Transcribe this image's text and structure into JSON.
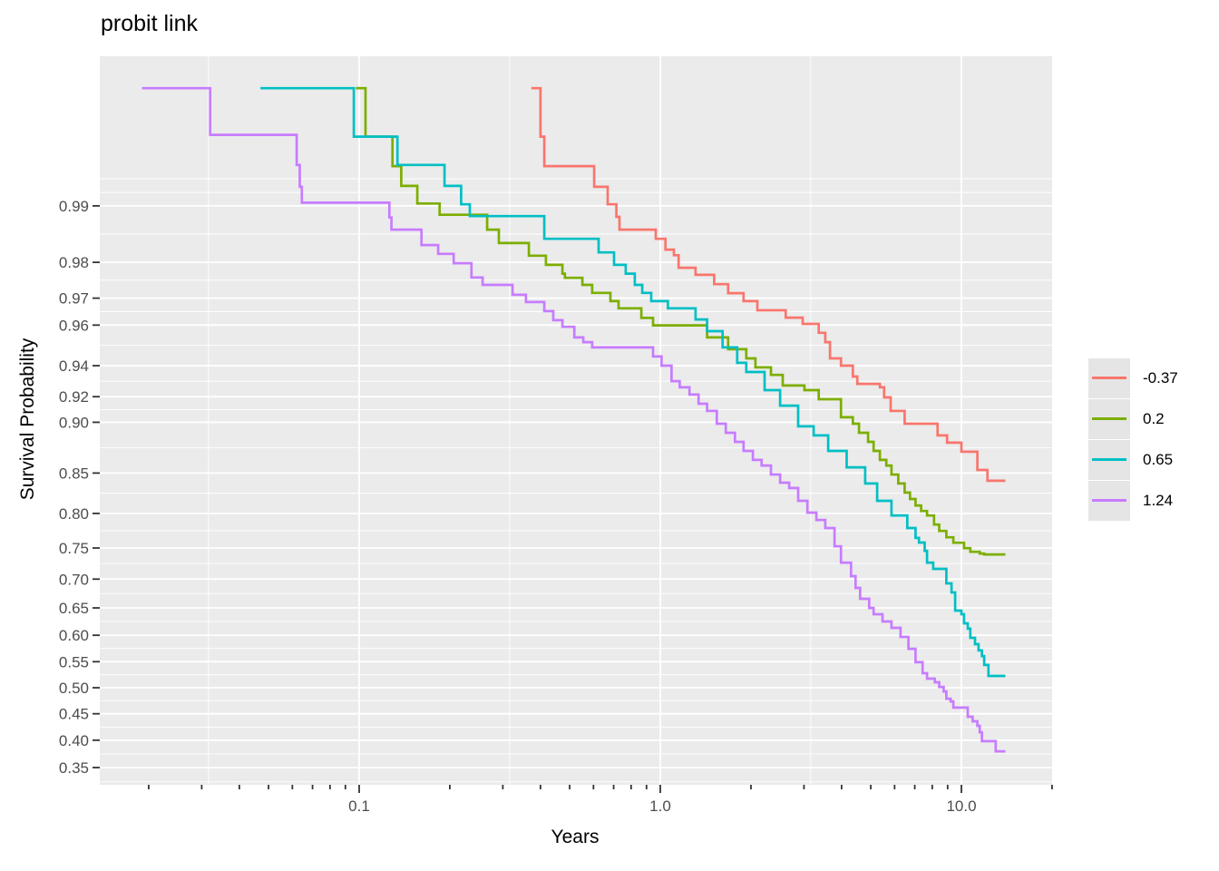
{
  "title": "probit link",
  "chart_data": {
    "type": "line",
    "subtype": "step-survival",
    "title": "probit link",
    "xlabel": "Years",
    "ylabel": "Survival Probability",
    "x_scale": "log10",
    "y_scale": "probit",
    "x_range": [
      0.0138,
      20.0
    ],
    "y_range": [
      0.32,
      0.9988
    ],
    "grid": "on",
    "legend_position": "right",
    "panel_background": "#EBEBEB",
    "gridline_color": "#FFFFFF",
    "tick_color": "#333333",
    "tick_label_color": "#4D4D4D",
    "x_ticks": [
      {
        "value": 0.1,
        "label": "0.1"
      },
      {
        "value": 1.0,
        "label": "1.0"
      },
      {
        "value": 10.0,
        "label": "10.0"
      }
    ],
    "x_minor_ticks": [
      0.02,
      0.03,
      0.04,
      0.05,
      0.06,
      0.07,
      0.08,
      0.09,
      0.2,
      0.3,
      0.4,
      0.5,
      0.6,
      0.7,
      0.8,
      0.9,
      2,
      3,
      4,
      5,
      6,
      7,
      8,
      9,
      20
    ],
    "x_minor_gridlines": [
      0.0316,
      0.316,
      3.16
    ],
    "y_ticks": [
      {
        "value": 0.99,
        "label": "0.99"
      },
      {
        "value": 0.98,
        "label": "0.98"
      },
      {
        "value": 0.97,
        "label": "0.97"
      },
      {
        "value": 0.96,
        "label": "0.96"
      },
      {
        "value": 0.94,
        "label": "0.94"
      },
      {
        "value": 0.92,
        "label": "0.92"
      },
      {
        "value": 0.9,
        "label": "0.90"
      },
      {
        "value": 0.85,
        "label": "0.85"
      },
      {
        "value": 0.8,
        "label": "0.80"
      },
      {
        "value": 0.75,
        "label": "0.75"
      },
      {
        "value": 0.7,
        "label": "0.70"
      },
      {
        "value": 0.65,
        "label": "0.65"
      },
      {
        "value": 0.6,
        "label": "0.60"
      },
      {
        "value": 0.55,
        "label": "0.55"
      },
      {
        "value": 0.5,
        "label": "0.50"
      },
      {
        "value": 0.45,
        "label": "0.45"
      },
      {
        "value": 0.4,
        "label": "0.40"
      },
      {
        "value": 0.35,
        "label": "0.35"
      }
    ],
    "y_minor_gridlines": [
      0.993,
      0.9916,
      0.98574,
      0.97543,
      0.96528,
      0.95086,
      0.93055,
      0.91036,
      0.87678,
      0.82614,
      0.77582,
      0.72564,
      0.67527,
      0.62528,
      0.57535,
      0.52504,
      0.47496,
      0.42465,
      0.37472,
      0.3249
    ],
    "series": [
      {
        "name": "-0.37",
        "color": "#F8766D",
        "points": [
          [
            0.373,
            0.9981
          ],
          [
            0.4,
            0.9961
          ],
          [
            0.412,
            0.9941
          ],
          [
            0.603,
            0.9922
          ],
          [
            0.669,
            0.9902
          ],
          [
            0.715,
            0.9885
          ],
          [
            0.732,
            0.9865
          ],
          [
            0.966,
            0.9849
          ],
          [
            1.04,
            0.9828
          ],
          [
            1.11,
            0.9816
          ],
          [
            1.15,
            0.9787
          ],
          [
            1.31,
            0.9769
          ],
          [
            1.51,
            0.9743
          ],
          [
            1.68,
            0.9716
          ],
          [
            1.89,
            0.969
          ],
          [
            2.1,
            0.9658
          ],
          [
            2.61,
            0.963
          ],
          [
            2.97,
            0.9605
          ],
          [
            3.36,
            0.9567
          ],
          [
            3.53,
            0.9524
          ],
          [
            3.66,
            0.9441
          ],
          [
            3.98,
            0.94
          ],
          [
            4.36,
            0.9335
          ],
          [
            4.51,
            0.9288
          ],
          [
            5.36,
            0.9265
          ],
          [
            5.54,
            0.9195
          ],
          [
            5.82,
            0.9093
          ],
          [
            6.48,
            0.8988
          ],
          [
            8.33,
            0.8884
          ],
          [
            8.96,
            0.8816
          ],
          [
            10.0,
            0.8727
          ],
          [
            11.3,
            0.8534
          ],
          [
            12.2,
            0.8411
          ],
          [
            14.0,
            0.8411
          ]
        ]
      },
      {
        "name": "0.2",
        "color": "#7CAE00",
        "points": [
          [
            0.0975,
            0.9981
          ],
          [
            0.105,
            0.9961
          ],
          [
            0.129,
            0.9941
          ],
          [
            0.138,
            0.9923
          ],
          [
            0.156,
            0.9903
          ],
          [
            0.185,
            0.9888
          ],
          [
            0.266,
            0.9865
          ],
          [
            0.291,
            0.9841
          ],
          [
            0.366,
            0.9815
          ],
          [
            0.417,
            0.9794
          ],
          [
            0.473,
            0.9772
          ],
          [
            0.482,
            0.9761
          ],
          [
            0.551,
            0.9741
          ],
          [
            0.594,
            0.9717
          ],
          [
            0.683,
            0.969
          ],
          [
            0.727,
            0.9665
          ],
          [
            0.865,
            0.9629
          ],
          [
            0.946,
            0.9599
          ],
          [
            1.43,
            0.9546
          ],
          [
            1.68,
            0.9489
          ],
          [
            1.93,
            0.9441
          ],
          [
            2.07,
            0.939
          ],
          [
            2.33,
            0.9345
          ],
          [
            2.55,
            0.9277
          ],
          [
            3.01,
            0.9246
          ],
          [
            3.36,
            0.9182
          ],
          [
            3.98,
            0.9042
          ],
          [
            4.36,
            0.8988
          ],
          [
            4.57,
            0.8908
          ],
          [
            4.9,
            0.8824
          ],
          [
            5.11,
            0.8735
          ],
          [
            5.36,
            0.8643
          ],
          [
            5.63,
            0.8583
          ],
          [
            5.86,
            0.8483
          ],
          [
            6.17,
            0.8379
          ],
          [
            6.48,
            0.827
          ],
          [
            6.75,
            0.8189
          ],
          [
            7.04,
            0.8106
          ],
          [
            7.35,
            0.8033
          ],
          [
            7.69,
            0.7971
          ],
          [
            8.11,
            0.7845
          ],
          [
            8.44,
            0.7754
          ],
          [
            8.91,
            0.7661
          ],
          [
            9.4,
            0.758
          ],
          [
            10.2,
            0.7497
          ],
          [
            10.7,
            0.7442
          ],
          [
            11.5,
            0.7414
          ],
          [
            11.9,
            0.74
          ],
          [
            14.0,
            0.74
          ]
        ]
      },
      {
        "name": "0.65",
        "color": "#00BFC4",
        "points": [
          [
            0.047,
            0.9981
          ],
          [
            0.096,
            0.9961
          ],
          [
            0.134,
            0.9942
          ],
          [
            0.192,
            0.9923
          ],
          [
            0.218,
            0.9902
          ],
          [
            0.233,
            0.9886
          ],
          [
            0.412,
            0.9849
          ],
          [
            0.624,
            0.9822
          ],
          [
            0.702,
            0.9794
          ],
          [
            0.768,
            0.9772
          ],
          [
            0.823,
            0.9741
          ],
          [
            0.871,
            0.9717
          ],
          [
            0.933,
            0.969
          ],
          [
            1.06,
            0.9665
          ],
          [
            1.31,
            0.9623
          ],
          [
            1.43,
            0.9574
          ],
          [
            1.61,
            0.9498
          ],
          [
            1.8,
            0.9416
          ],
          [
            1.93,
            0.9363
          ],
          [
            2.22,
            0.9246
          ],
          [
            2.5,
            0.9134
          ],
          [
            2.87,
            0.8965
          ],
          [
            3.23,
            0.8884
          ],
          [
            3.61,
            0.8735
          ],
          [
            4.16,
            0.8563
          ],
          [
            4.79,
            0.8379
          ],
          [
            5.25,
            0.8165
          ],
          [
            5.86,
            0.7973
          ],
          [
            6.61,
            0.7796
          ],
          [
            7.04,
            0.7652
          ],
          [
            7.23,
            0.7583
          ],
          [
            7.55,
            0.7457
          ],
          [
            7.69,
            0.7271
          ],
          [
            8.06,
            0.717
          ],
          [
            8.91,
            0.6928
          ],
          [
            9.27,
            0.6772
          ],
          [
            9.53,
            0.6451
          ],
          [
            10.0,
            0.6387
          ],
          [
            10.2,
            0.6221
          ],
          [
            10.5,
            0.6122
          ],
          [
            10.7,
            0.5952
          ],
          [
            11.1,
            0.5832
          ],
          [
            11.4,
            0.5714
          ],
          [
            11.7,
            0.5608
          ],
          [
            11.9,
            0.5438
          ],
          [
            12.3,
            0.5227
          ],
          [
            14.0,
            0.5227
          ]
        ]
      },
      {
        "name": "1.24",
        "color": "#C77CFF",
        "points": [
          [
            0.019,
            0.9981
          ],
          [
            0.032,
            0.9962
          ],
          [
            0.062,
            0.9942
          ],
          [
            0.0635,
            0.9922
          ],
          [
            0.0645,
            0.9904
          ],
          [
            0.126,
            0.9884
          ],
          [
            0.128,
            0.9865
          ],
          [
            0.161,
            0.9837
          ],
          [
            0.183,
            0.9819
          ],
          [
            0.206,
            0.9798
          ],
          [
            0.236,
            0.9762
          ],
          [
            0.257,
            0.9741
          ],
          [
            0.323,
            0.9711
          ],
          [
            0.358,
            0.9687
          ],
          [
            0.412,
            0.9655
          ],
          [
            0.441,
            0.962
          ],
          [
            0.473,
            0.9593
          ],
          [
            0.518,
            0.9546
          ],
          [
            0.555,
            0.9524
          ],
          [
            0.594,
            0.9498
          ],
          [
            0.946,
            0.9451
          ],
          [
            1.01,
            0.94
          ],
          [
            1.09,
            0.9306
          ],
          [
            1.16,
            0.9265
          ],
          [
            1.25,
            0.9215
          ],
          [
            1.34,
            0.9148
          ],
          [
            1.43,
            0.9093
          ],
          [
            1.54,
            0.8988
          ],
          [
            1.65,
            0.8908
          ],
          [
            1.77,
            0.8824
          ],
          [
            1.89,
            0.8735
          ],
          [
            2.03,
            0.8643
          ],
          [
            2.17,
            0.8583
          ],
          [
            2.33,
            0.8483
          ],
          [
            2.5,
            0.8389
          ],
          [
            2.68,
            0.8325
          ],
          [
            2.87,
            0.8165
          ],
          [
            3.08,
            0.801
          ],
          [
            3.3,
            0.791
          ],
          [
            3.53,
            0.7796
          ],
          [
            3.79,
            0.7527
          ],
          [
            3.98,
            0.7271
          ],
          [
            4.3,
            0.705
          ],
          [
            4.45,
            0.6851
          ],
          [
            4.61,
            0.6661
          ],
          [
            4.94,
            0.6499
          ],
          [
            5.11,
            0.6387
          ],
          [
            5.47,
            0.6255
          ],
          [
            5.86,
            0.6137
          ],
          [
            6.28,
            0.5968
          ],
          [
            6.67,
            0.5746
          ],
          [
            7.04,
            0.5489
          ],
          [
            7.43,
            0.5279
          ],
          [
            7.69,
            0.5175
          ],
          [
            8.16,
            0.5104
          ],
          [
            8.44,
            0.5016
          ],
          [
            8.73,
            0.4928
          ],
          [
            8.91,
            0.4789
          ],
          [
            9.21,
            0.4737
          ],
          [
            9.4,
            0.4618
          ],
          [
            10.5,
            0.4443
          ],
          [
            10.9,
            0.4357
          ],
          [
            11.3,
            0.427
          ],
          [
            11.5,
            0.4149
          ],
          [
            11.7,
            0.3982
          ],
          [
            13.0,
            0.3794
          ],
          [
            14.0,
            0.3794
          ]
        ]
      }
    ]
  }
}
